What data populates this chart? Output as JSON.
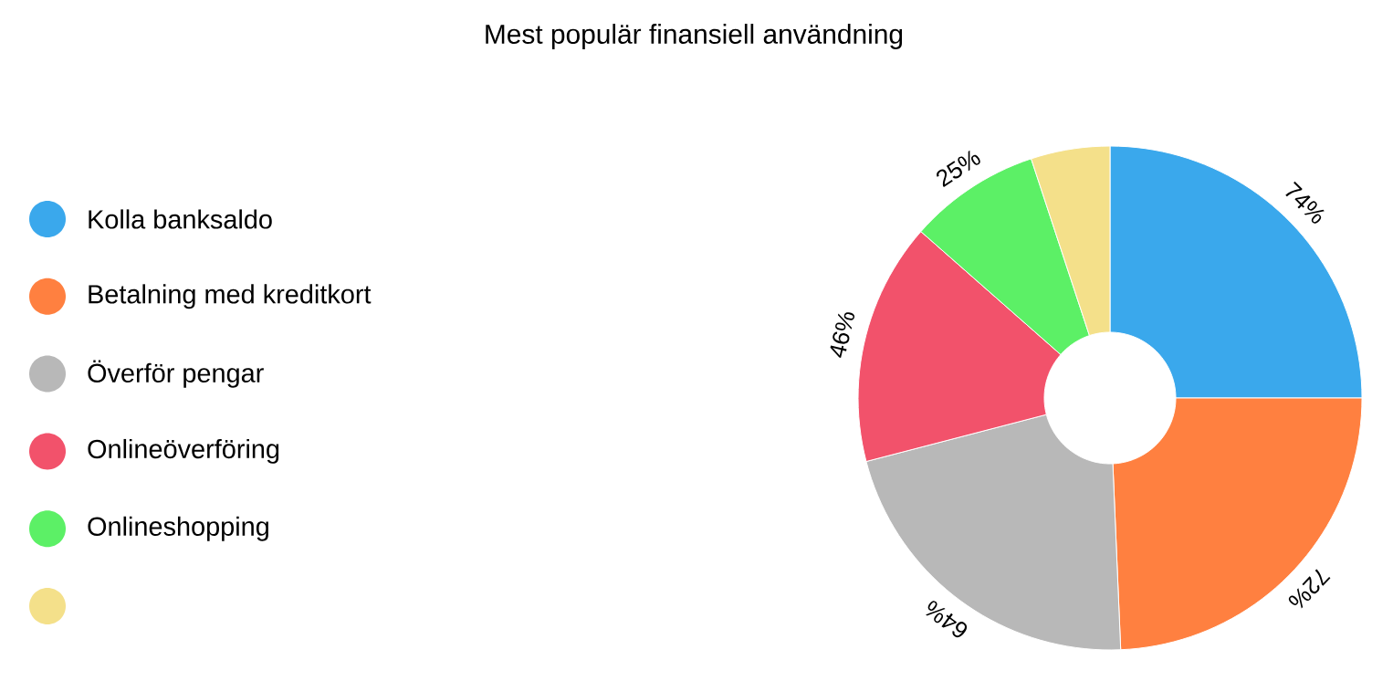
{
  "chart_data": {
    "type": "donut",
    "title": "Mest populär finansiell användning",
    "categories": [
      "Kolla banksaldo",
      "Betalning med kreditkort",
      "Överför pengar",
      "Onlineöverföring",
      "Onlineshopping",
      null
    ],
    "values": [
      74,
      72,
      64,
      46,
      25,
      15
    ],
    "value_labels": [
      "74%",
      "72%",
      "64%",
      "46%",
      "25%",
      null
    ],
    "colors": [
      "#3aa8ec",
      "#ff8040",
      "#b8b8b8",
      "#f2526b",
      "#5cf066",
      "#f4e08a"
    ],
    "legend": "left"
  }
}
